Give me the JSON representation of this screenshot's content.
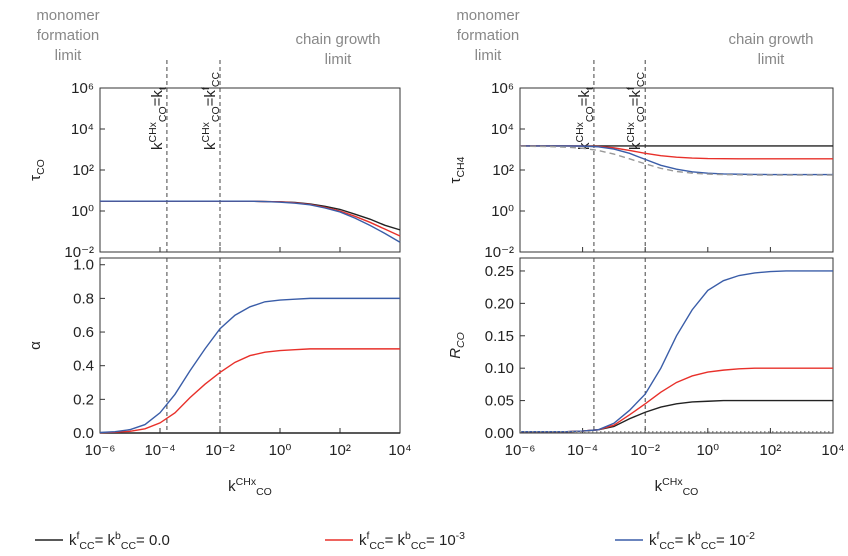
{
  "chart_data": [
    {
      "type": "line",
      "xlog": true,
      "ylog": true,
      "ylabel": "τ_{CO}",
      "xlim": [
        1e-06,
        10000
      ],
      "xticks": [
        1e-06,
        0.0001,
        0.01,
        1,
        100,
        10000
      ],
      "ylim": [
        0.01,
        1000000
      ],
      "yticks": [
        {
          "value": 0.01,
          "label": "10⁻²"
        },
        {
          "value": 1,
          "label": "10⁰"
        },
        {
          "value": 100,
          "label": "10²"
        },
        {
          "value": 10000,
          "label": "10⁴"
        },
        {
          "value": 1000000,
          "label": "10⁶"
        }
      ],
      "annotations": {
        "left": [
          "monomer",
          "formation",
          "limit"
        ],
        "right": [
          "chain growth",
          "limit"
        ]
      },
      "vlines": [
        0.00017,
        0.01
      ],
      "vline_labels": [
        "k^{CHx}_{CO}=k_{t}",
        "k^{CHx}_{CO}=k^{f}_{CC}"
      ],
      "x": [
        1e-06,
        3.16e-06,
        1e-05,
        3.16e-05,
        0.0001,
        0.000316,
        0.001,
        0.00316,
        0.01,
        0.0316,
        0.1,
        0.316,
        1,
        3.16,
        10,
        31.6,
        100,
        316,
        1000,
        3160,
        10000
      ],
      "series": [
        {
          "name": "k^{f}_{CC}= k^{b}_{CC}= 0.0",
          "color": "#222222",
          "style": "solid",
          "values": [
            3,
            3,
            3,
            3,
            3,
            3,
            3,
            3,
            3,
            3,
            3,
            2.9,
            2.8,
            2.6,
            2.2,
            1.7,
            1.2,
            0.7,
            0.4,
            0.2,
            0.12
          ]
        },
        {
          "name": "k^{f}_{CC}= k^{b}_{CC}= 10^{-3}",
          "color": "#e8302a",
          "style": "solid",
          "values": [
            3,
            3,
            3,
            3,
            3,
            3,
            3,
            3,
            3,
            3,
            3,
            2.9,
            2.8,
            2.5,
            2.1,
            1.5,
            1.0,
            0.55,
            0.28,
            0.13,
            0.06
          ]
        },
        {
          "name": "k^{f}_{CC}= k^{b}_{CC}= 10^{-2}",
          "color": "#3a5da8",
          "style": "solid",
          "values": [
            3,
            3,
            3,
            3,
            3,
            3,
            3,
            3,
            3,
            3,
            3,
            2.9,
            2.7,
            2.4,
            2.0,
            1.4,
            0.9,
            0.45,
            0.2,
            0.08,
            0.03
          ]
        }
      ]
    },
    {
      "type": "line",
      "xlog": true,
      "ylog": false,
      "ylabel": "α",
      "xlabel": "k^{CHx}_{CO}",
      "xlim": [
        1e-06,
        10000
      ],
      "xticks": [
        {
          "value": 1e-06,
          "label": "10⁻⁶"
        },
        {
          "value": 0.0001,
          "label": "10⁻⁴"
        },
        {
          "value": 0.01,
          "label": "10⁻²"
        },
        {
          "value": 1,
          "label": "10⁰"
        },
        {
          "value": 100,
          "label": "10²"
        },
        {
          "value": 10000,
          "label": "10⁴"
        }
      ],
      "ylim": [
        0,
        1.04
      ],
      "yticks": [
        {
          "value": 0,
          "label": "0.0"
        },
        0.2,
        0.4,
        0.6,
        0.8,
        {
          "value": 1,
          "label": "1.0"
        }
      ],
      "vlines": [
        0.00017,
        0.01
      ],
      "x": [
        1e-06,
        3.16e-06,
        1e-05,
        3.16e-05,
        0.0001,
        0.000316,
        0.001,
        0.00316,
        0.01,
        0.0316,
        0.1,
        0.316,
        1,
        3.16,
        10,
        31.6,
        100,
        316,
        1000,
        3160,
        10000
      ],
      "series": [
        {
          "color": "#222222",
          "style": "solid",
          "values": [
            0,
            0,
            0,
            0,
            0,
            0,
            0,
            0,
            0,
            0,
            0,
            0,
            0,
            0,
            0,
            0,
            0,
            0,
            0,
            0,
            0
          ]
        },
        {
          "color": "#e8302a",
          "style": "solid",
          "values": [
            0.002,
            0.005,
            0.01,
            0.025,
            0.06,
            0.12,
            0.21,
            0.29,
            0.36,
            0.42,
            0.46,
            0.48,
            0.49,
            0.495,
            0.5,
            0.5,
            0.5,
            0.5,
            0.5,
            0.5,
            0.5
          ]
        },
        {
          "color": "#3a5da8",
          "style": "solid",
          "values": [
            0.003,
            0.008,
            0.02,
            0.05,
            0.12,
            0.23,
            0.37,
            0.5,
            0.62,
            0.7,
            0.75,
            0.78,
            0.79,
            0.795,
            0.8,
            0.8,
            0.8,
            0.8,
            0.8,
            0.8,
            0.8
          ]
        }
      ]
    },
    {
      "type": "line",
      "xlog": true,
      "ylog": true,
      "ylabel": "τ_{CH4}",
      "xlim": [
        1e-06,
        10000
      ],
      "xticks": [
        1e-06,
        0.0001,
        0.01,
        1,
        100,
        10000
      ],
      "ylim": [
        0.01,
        1000000
      ],
      "yticks": [
        {
          "value": 0.01,
          "label": "10⁻²"
        },
        {
          "value": 1,
          "label": "10⁰"
        },
        {
          "value": 100,
          "label": "10²"
        },
        {
          "value": 10000,
          "label": "10⁴"
        },
        {
          "value": 1000000,
          "label": "10⁶"
        }
      ],
      "annotations": {
        "left": [
          "monomer",
          "formation",
          "limit"
        ],
        "right": [
          "chain growth",
          "limit"
        ]
      },
      "vlines": [
        0.00023,
        0.01
      ],
      "vline_labels": [
        "k^{CHx}_{CO}=k_{t}",
        "k^{CHx}_{CO}=k^{f}_{CC}"
      ],
      "x": [
        1e-06,
        3.16e-06,
        1e-05,
        3.16e-05,
        0.0001,
        0.000316,
        0.001,
        0.00316,
        0.01,
        0.0316,
        0.1,
        0.316,
        1,
        3.16,
        10,
        31.6,
        100,
        316,
        1000,
        3160,
        10000
      ],
      "series": [
        {
          "color": "#222222",
          "style": "solid",
          "values": [
            1500,
            1500,
            1500,
            1500,
            1500,
            1500,
            1500,
            1500,
            1500,
            1500,
            1500,
            1500,
            1500,
            1500,
            1500,
            1500,
            1500,
            1500,
            1500,
            1500,
            1500
          ]
        },
        {
          "color": "#e8302a",
          "style": "solid",
          "values": [
            1500,
            1500,
            1500,
            1490,
            1470,
            1400,
            1200,
            900,
            650,
            500,
            420,
            380,
            360,
            355,
            352,
            351,
            350,
            350,
            350,
            350,
            350
          ]
        },
        {
          "color": "#3a5da8",
          "style": "solid",
          "values": [
            1500,
            1500,
            1500,
            1490,
            1460,
            1350,
            1050,
            650,
            330,
            170,
            110,
            82,
            70,
            64,
            62,
            61,
            60,
            60,
            60,
            60,
            60
          ]
        },
        {
          "color": "#999999",
          "style": "dashed",
          "values": [
            1450,
            1420,
            1380,
            1300,
            1150,
            900,
            600,
            350,
            200,
            120,
            85,
            70,
            63,
            60,
            58,
            57,
            57,
            57,
            57,
            57,
            57
          ]
        }
      ]
    },
    {
      "type": "line",
      "xlog": true,
      "ylog": false,
      "ylabel": "R_{CO}",
      "xlabel": "k^{CHx}_{CO}",
      "xlim": [
        1e-06,
        10000
      ],
      "xticks": [
        {
          "value": 1e-06,
          "label": "10⁻⁶"
        },
        {
          "value": 0.0001,
          "label": "10⁻⁴"
        },
        {
          "value": 0.01,
          "label": "10⁻²"
        },
        {
          "value": 1,
          "label": "10⁰"
        },
        {
          "value": 100,
          "label": "10²"
        },
        {
          "value": 10000,
          "label": "10⁴"
        }
      ],
      "ylim": [
        0,
        0.27
      ],
      "yticks": [
        {
          "value": 0,
          "label": "0.00"
        },
        0.05,
        {
          "value": 0.1,
          "label": "0.10"
        },
        0.15,
        {
          "value": 0.2,
          "label": "0.20"
        },
        0.25
      ],
      "vlines": [
        0.00023,
        0.01
      ],
      "x": [
        1e-06,
        3.16e-06,
        1e-05,
        3.16e-05,
        0.0001,
        0.000316,
        0.001,
        0.00316,
        0.01,
        0.0316,
        0.1,
        0.316,
        1,
        3.16,
        10,
        31.6,
        100,
        316,
        1000,
        3160,
        10000
      ],
      "series": [
        {
          "color": "#222222",
          "style": "solid",
          "values": [
            0.002,
            0.002,
            0.002,
            0.002,
            0.003,
            0.005,
            0.01,
            0.022,
            0.032,
            0.04,
            0.045,
            0.048,
            0.049,
            0.05,
            0.05,
            0.05,
            0.05,
            0.05,
            0.05,
            0.05,
            0.05
          ]
        },
        {
          "color": "#e8302a",
          "style": "solid",
          "values": [
            0.002,
            0.002,
            0.002,
            0.002,
            0.003,
            0.005,
            0.012,
            0.028,
            0.045,
            0.063,
            0.078,
            0.088,
            0.094,
            0.097,
            0.099,
            0.1,
            0.1,
            0.1,
            0.1,
            0.1,
            0.1
          ]
        },
        {
          "color": "#3a5da8",
          "style": "solid",
          "values": [
            0.002,
            0.002,
            0.002,
            0.002,
            0.003,
            0.005,
            0.015,
            0.035,
            0.06,
            0.1,
            0.15,
            0.19,
            0.22,
            0.235,
            0.243,
            0.247,
            0.249,
            0.25,
            0.25,
            0.25,
            0.25
          ]
        },
        {
          "color": "#999999",
          "style": "dotted",
          "values": [
            0.002,
            0.002,
            0.002,
            0.002,
            0.002,
            0.002,
            0.002,
            0.002,
            0.002,
            0.002,
            0.002,
            0.002,
            0.002,
            0.002,
            0.002,
            0.002,
            0.002,
            0.002,
            0.002,
            0.002,
            0.002
          ]
        }
      ]
    }
  ]
}
